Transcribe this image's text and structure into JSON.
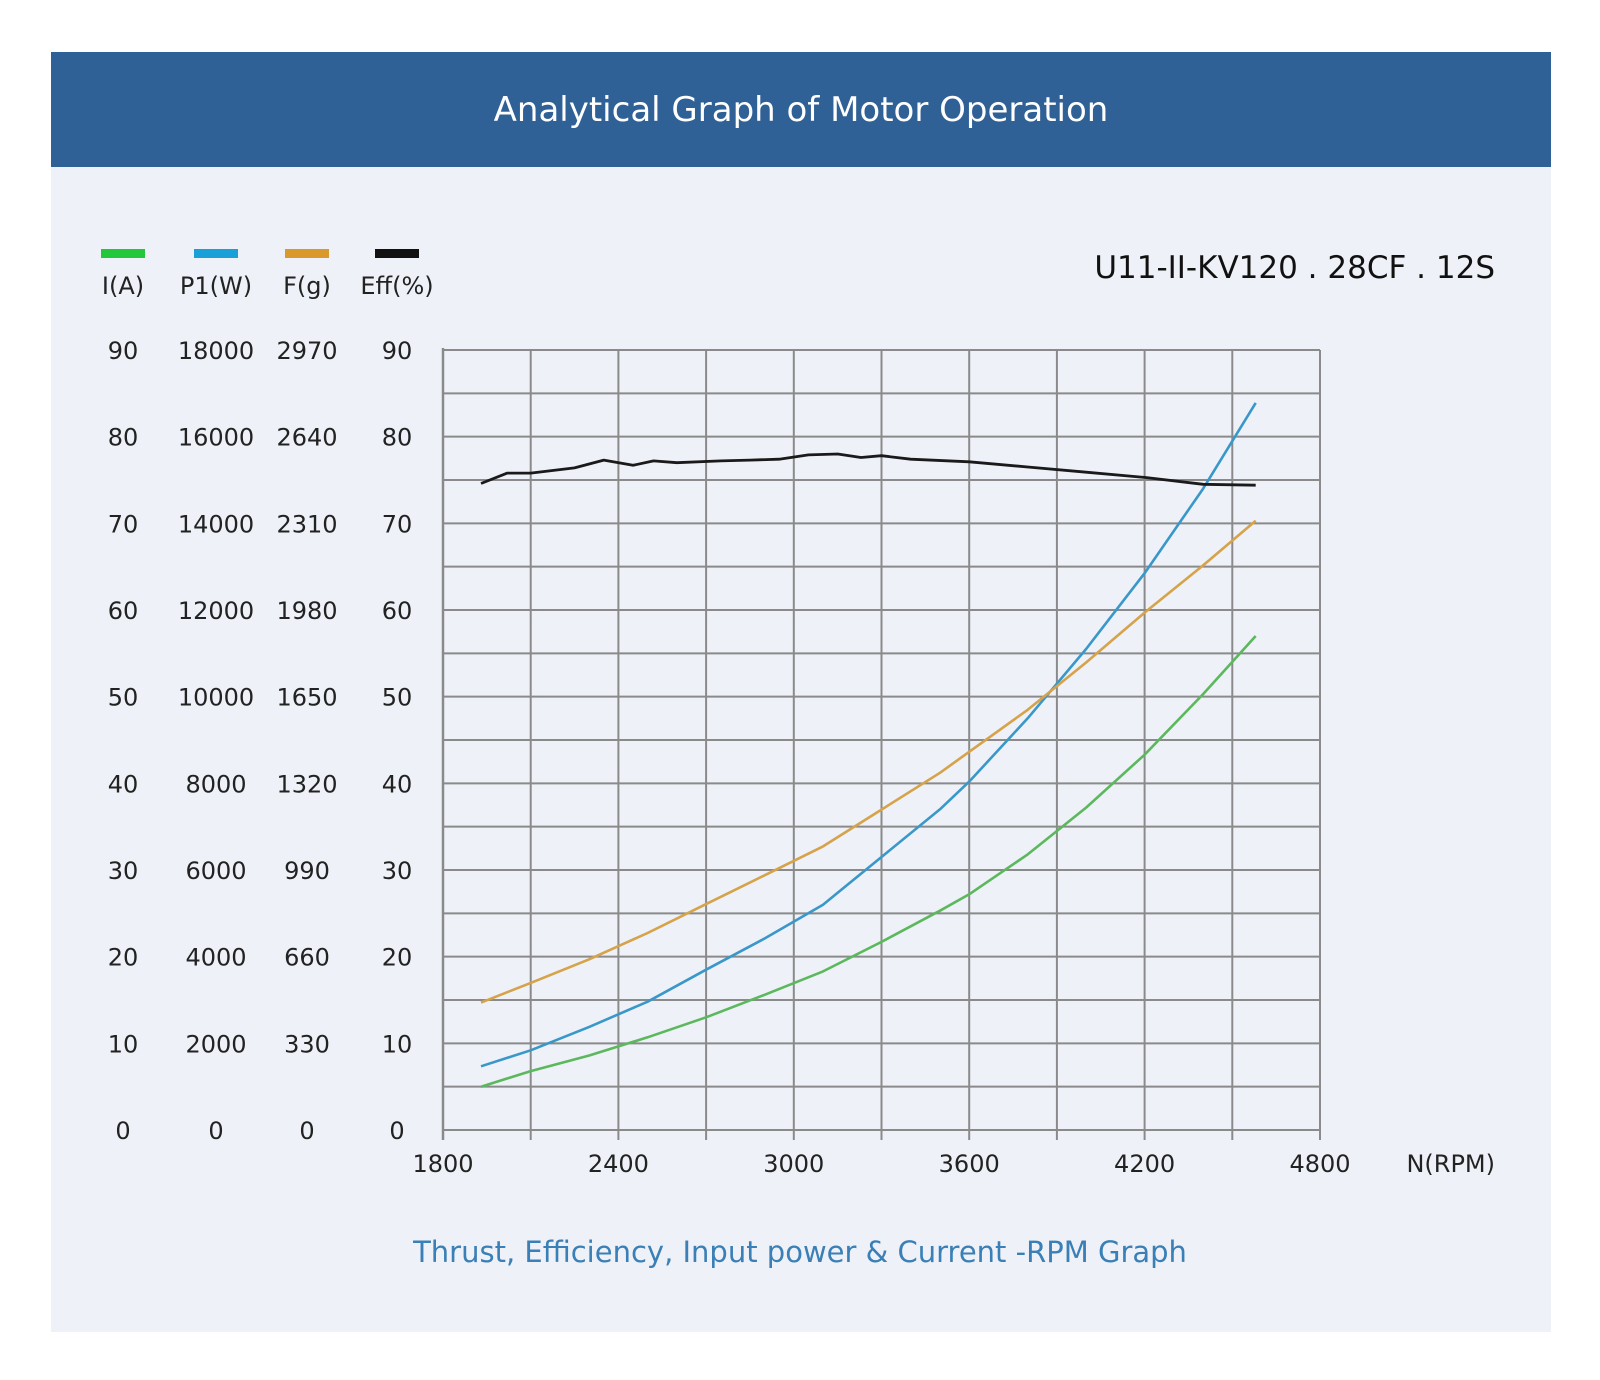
{
  "header": {
    "title": "Analytical Graph of Motor Operation"
  },
  "model": "U11-II-KV120 . 28CF . 12S",
  "footer": {
    "caption": "Thrust, Efficiency, Input power & Current -RPM Graph"
  },
  "colors": {
    "banner": "#2f6096",
    "panel": "#eef2f8",
    "current": "#5cb85c",
    "power": "#3a97c9",
    "thrust": "#d6a24a",
    "efficiency": "#1a1a1a",
    "legend_current": "#22c73a",
    "legend_power": "#1aa0d8",
    "legend_thrust": "#d99a2b",
    "legend_eff": "#111111"
  },
  "chart_data": {
    "type": "line",
    "xlabel": "N(RPM)",
    "x_ticks": [
      "1800",
      "2400",
      "3000",
      "3600",
      "4200",
      "4800"
    ],
    "xlim": [
      1800,
      4800
    ],
    "y_axes": [
      {
        "label": "I(A)",
        "ticks": [
          "90",
          "80",
          "70",
          "60",
          "50",
          "40",
          "30",
          "20",
          "10",
          "0"
        ],
        "range": [
          0,
          90
        ]
      },
      {
        "label": "P1(W)",
        "ticks": [
          "18000",
          "16000",
          "14000",
          "12000",
          "10000",
          "8000",
          "6000",
          "4000",
          "2000",
          "0"
        ],
        "range": [
          0,
          18000
        ]
      },
      {
        "label": "F(g)",
        "ticks": [
          "2970",
          "2640",
          "2310",
          "1980",
          "1650",
          "1320",
          "990",
          "660",
          "330",
          "0"
        ],
        "range": [
          0,
          2970
        ]
      },
      {
        "label": "Eff(%)",
        "ticks": [
          "90",
          "80",
          "70",
          "60",
          "50",
          "40",
          "30",
          "20",
          "10",
          "0"
        ],
        "range": [
          0,
          90
        ]
      }
    ],
    "series": [
      {
        "name": "I(A)",
        "points": [
          [
            1930,
            5.0
          ],
          [
            2100,
            6.8
          ],
          [
            2300,
            8.6
          ],
          [
            2500,
            10.7
          ],
          [
            2700,
            13.0
          ],
          [
            2900,
            15.6
          ],
          [
            3100,
            18.3
          ],
          [
            3300,
            21.7
          ],
          [
            3500,
            25.3
          ],
          [
            3600,
            27.2
          ],
          [
            3800,
            31.8
          ],
          [
            4000,
            37.2
          ],
          [
            4200,
            43.3
          ],
          [
            4400,
            50.3
          ],
          [
            4580,
            57.0
          ]
        ]
      },
      {
        "name": "P1(W)",
        "points": [
          [
            1930,
            1470
          ],
          [
            2100,
            1840
          ],
          [
            2300,
            2380
          ],
          [
            2500,
            2960
          ],
          [
            2700,
            3700
          ],
          [
            2900,
            4420
          ],
          [
            3100,
            5200
          ],
          [
            3300,
            6300
          ],
          [
            3500,
            7400
          ],
          [
            3600,
            8040
          ],
          [
            3800,
            9500
          ],
          [
            4000,
            11100
          ],
          [
            4200,
            12850
          ],
          [
            4400,
            14800
          ],
          [
            4580,
            16780
          ]
        ]
      },
      {
        "name": "F(g)",
        "points": [
          [
            1930,
            485
          ],
          [
            2100,
            560
          ],
          [
            2300,
            650
          ],
          [
            2500,
            750
          ],
          [
            2700,
            860
          ],
          [
            2900,
            970
          ],
          [
            3100,
            1080
          ],
          [
            3300,
            1220
          ],
          [
            3500,
            1360
          ],
          [
            3600,
            1440
          ],
          [
            3800,
            1600
          ],
          [
            4000,
            1780
          ],
          [
            4200,
            1970
          ],
          [
            4400,
            2150
          ],
          [
            4580,
            2320
          ]
        ]
      },
      {
        "name": "Eff(%)",
        "points": [
          [
            1930,
            74.6
          ],
          [
            2020,
            75.8
          ],
          [
            2100,
            75.8
          ],
          [
            2250,
            76.4
          ],
          [
            2350,
            77.3
          ],
          [
            2450,
            76.7
          ],
          [
            2520,
            77.2
          ],
          [
            2600,
            77.0
          ],
          [
            2750,
            77.2
          ],
          [
            2850,
            77.3
          ],
          [
            2950,
            77.4
          ],
          [
            3050,
            77.9
          ],
          [
            3150,
            78.0
          ],
          [
            3230,
            77.6
          ],
          [
            3300,
            77.8
          ],
          [
            3400,
            77.4
          ],
          [
            3600,
            77.1
          ],
          [
            3800,
            76.5
          ],
          [
            4000,
            75.9
          ],
          [
            4200,
            75.3
          ],
          [
            4400,
            74.5
          ],
          [
            4580,
            74.4
          ]
        ]
      }
    ]
  }
}
